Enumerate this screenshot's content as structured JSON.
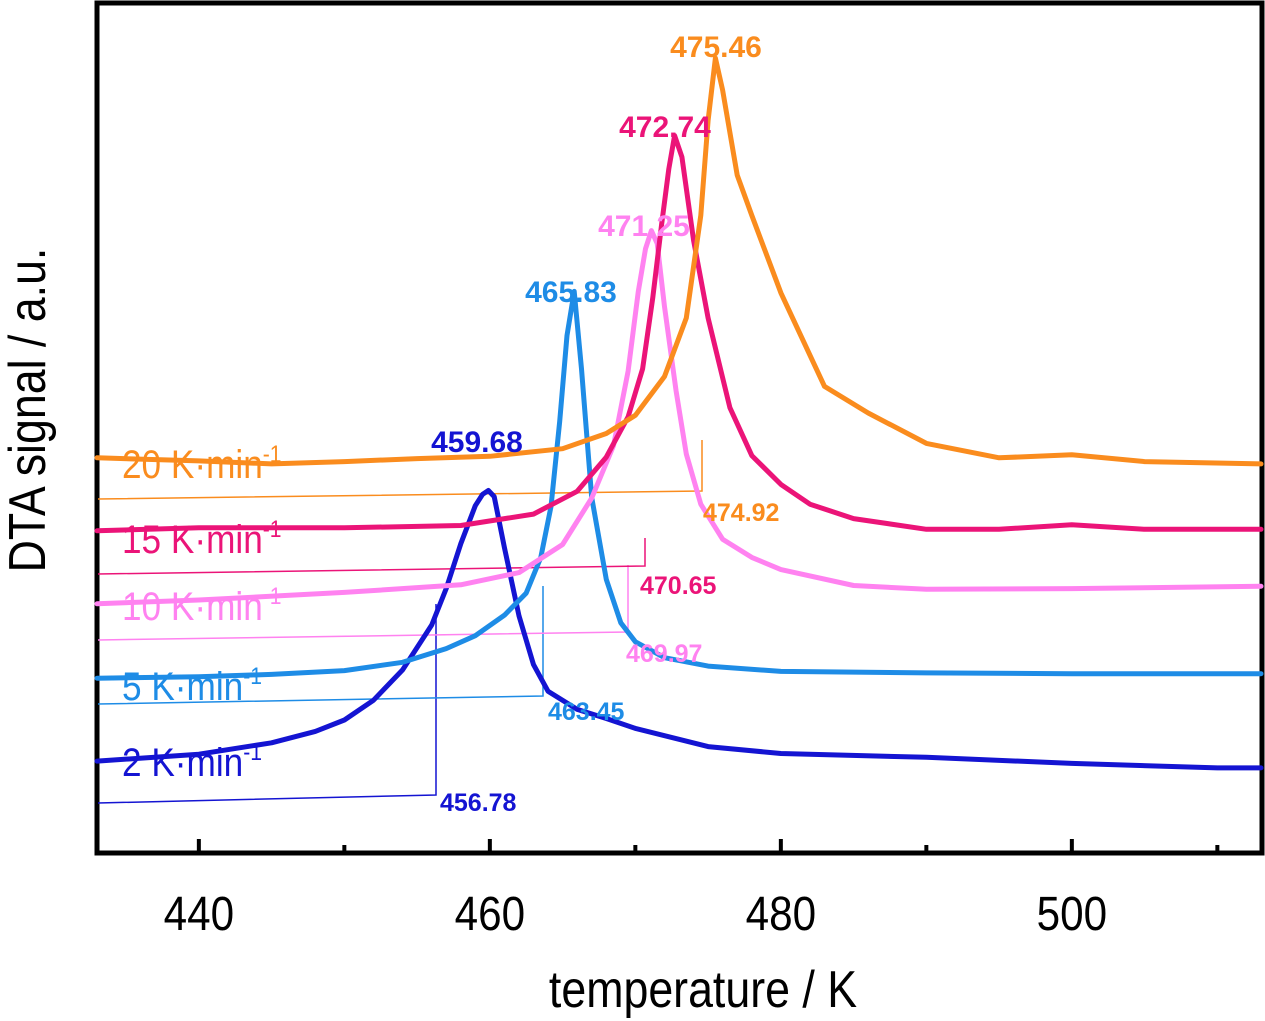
{
  "chart_data": {
    "type": "line",
    "xlabel": "temperature / K",
    "ylabel": "DTA signal / a.u.",
    "xlim": [
      433,
      513
    ],
    "ylim": [
      0,
      100
    ],
    "x_ticks": [
      440,
      460,
      480,
      500
    ],
    "x_minor_ticks": [
      450,
      470,
      490,
      510
    ],
    "grid": false,
    "legend": "inline-left",
    "colors": {
      "s2": "#1414d2",
      "s5": "#1e8ce6",
      "s10": "#ff82f0",
      "s15": "#eb1478",
      "s20": "#fa8c1e"
    },
    "series": [
      {
        "name": "2 K·min",
        "name_sup": "-1",
        "rate": 2,
        "color": "#1414d2",
        "peak_label": "459.68",
        "onset_label": "456.78",
        "x": [
          433,
          440,
          445,
          448,
          450,
          452,
          454,
          456,
          457,
          458,
          459,
          459.5,
          459.9,
          460.3,
          461,
          462,
          463,
          464,
          466,
          468,
          470,
          475,
          480,
          490,
          500,
          510,
          513
        ],
        "y": [
          6.7,
          7.6,
          9.1,
          10.6,
          12.1,
          14.7,
          18.7,
          24.6,
          29.4,
          35.3,
          40.3,
          41.8,
          42.3,
          41.5,
          34.8,
          25.8,
          19.4,
          15.9,
          13.5,
          12.3,
          11.0,
          8.6,
          7.7,
          7.2,
          6.4,
          5.8,
          5.8
        ]
      },
      {
        "name": "5 K·min",
        "name_sup": "-1",
        "rate": 5,
        "color": "#1e8ce6",
        "peak_label": "465.83",
        "onset_label": "463.45",
        "x": [
          433,
          440,
          445,
          450,
          454,
          457,
          459,
          461,
          462.5,
          463.5,
          464.2,
          464.8,
          465.3,
          465.8,
          466.3,
          467,
          468,
          469,
          470,
          472,
          475,
          480,
          490,
          500,
          510,
          513
        ],
        "y": [
          17.6,
          17.8,
          18.1,
          18.6,
          19.7,
          21.5,
          23.2,
          25.9,
          28.8,
          33.5,
          40.2,
          51.4,
          62.7,
          68.5,
          58.3,
          41.4,
          30.6,
          24.9,
          22.4,
          20.3,
          19.2,
          18.5,
          18.3,
          18.2,
          18.2,
          18.2
        ]
      },
      {
        "name": "10 K·min",
        "name_sup": "-1",
        "rate": 10,
        "color": "#ff82f0",
        "peak_label": "471.25",
        "onset_label": "469.97",
        "x": [
          433,
          440,
          450,
          458,
          462,
          465,
          467,
          468.5,
          469.5,
          470.2,
          470.7,
          471.1,
          471.5,
          472,
          472.8,
          473.5,
          474.5,
          476,
          478,
          480,
          485,
          490,
          500,
          513
        ],
        "y": [
          27.4,
          27.9,
          28.9,
          29.9,
          31.5,
          35.2,
          41.3,
          48.2,
          58.0,
          68.5,
          74.1,
          76.5,
          74.8,
          66.5,
          55.4,
          47.1,
          40.5,
          35.9,
          33.5,
          31.9,
          29.8,
          29.3,
          29.4,
          29.7
        ]
      },
      {
        "name": "15 K·min",
        "name_sup": "-1",
        "rate": 15,
        "color": "#eb1478",
        "peak_label": "472.74",
        "onset_label": "470.65",
        "x": [
          433,
          440,
          450,
          458,
          463,
          466,
          468,
          469.5,
          470.5,
          471.2,
          471.8,
          472.3,
          472.7,
          473.2,
          474,
          475,
          476.5,
          478,
          480,
          482,
          485,
          490,
          495,
          500,
          505,
          513
        ],
        "y": [
          37.0,
          37.4,
          37.4,
          37.7,
          39.2,
          42.2,
          46.7,
          52.0,
          58.3,
          67.7,
          77.2,
          84.6,
          89.0,
          86.2,
          75.2,
          65.0,
          53.2,
          46.9,
          43.1,
          40.5,
          38.6,
          37.2,
          37.2,
          37.8,
          37.2,
          37.2
        ]
      },
      {
        "name": "20 K·min",
        "name_sup": "-1",
        "rate": 20,
        "color": "#fa8c1e",
        "peak_label": "475.46",
        "onset_label": "474.92",
        "x": [
          433,
          440,
          445,
          450,
          455,
          460,
          465,
          468,
          470,
          472,
          473.5,
          474.5,
          475,
          475.5,
          476,
          477,
          478,
          480,
          483,
          486,
          490,
          495,
          500,
          505,
          513
        ],
        "y": [
          46.6,
          46.2,
          45.8,
          46.1,
          46.5,
          46.8,
          47.8,
          49.8,
          52.2,
          57.3,
          65.0,
          78.5,
          91.0,
          99.2,
          95.0,
          83.8,
          78.5,
          68.3,
          56.0,
          52.5,
          48.5,
          46.6,
          47.0,
          46.1,
          45.8
        ]
      }
    ]
  }
}
